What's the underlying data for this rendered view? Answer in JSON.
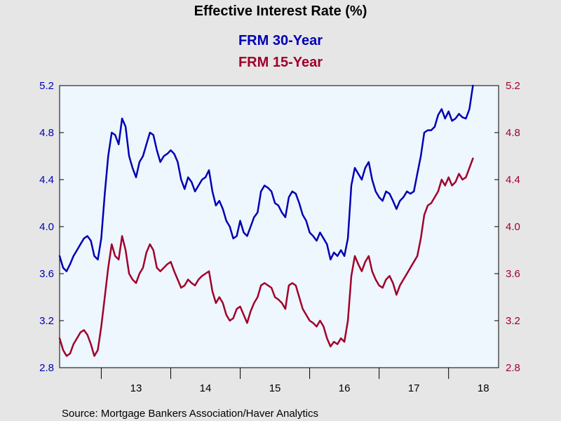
{
  "chart_data": {
    "type": "line",
    "title": "Effective Interest Rate (%)",
    "source": "Source:  Mortgage Bankers Association/Haver Analytics",
    "ylim": [
      2.8,
      5.2
    ],
    "yticks": [
      "2.8",
      "3.2",
      "3.6",
      "4.0",
      "4.4",
      "4.8",
      "5.2"
    ],
    "xlim": [
      2012.4,
      2018.72
    ],
    "xticks": [
      {
        "label": "13",
        "value": 2013.5
      },
      {
        "label": "14",
        "value": 2014.5
      },
      {
        "label": "15",
        "value": 2015.5
      },
      {
        "label": "16",
        "value": 2016.5
      },
      {
        "label": "17",
        "value": 2017.5
      },
      {
        "label": "18",
        "value": 2018.5
      }
    ],
    "year_boundaries": [
      2013,
      2014,
      2015,
      2016,
      2017,
      2018
    ],
    "grid": false,
    "legend_position": "top-center",
    "series": [
      {
        "name": "FRM 30-Year",
        "color": "#0000b4",
        "axis": "left",
        "points": [
          [
            2012.4,
            3.75
          ],
          [
            2012.45,
            3.65
          ],
          [
            2012.5,
            3.62
          ],
          [
            2012.55,
            3.68
          ],
          [
            2012.6,
            3.75
          ],
          [
            2012.65,
            3.8
          ],
          [
            2012.7,
            3.85
          ],
          [
            2012.75,
            3.9
          ],
          [
            2012.8,
            3.92
          ],
          [
            2012.85,
            3.88
          ],
          [
            2012.9,
            3.75
          ],
          [
            2012.95,
            3.72
          ],
          [
            2013.0,
            3.9
          ],
          [
            2013.05,
            4.28
          ],
          [
            2013.1,
            4.6
          ],
          [
            2013.15,
            4.8
          ],
          [
            2013.2,
            4.78
          ],
          [
            2013.25,
            4.7
          ],
          [
            2013.3,
            4.92
          ],
          [
            2013.35,
            4.85
          ],
          [
            2013.4,
            4.6
          ],
          [
            2013.45,
            4.5
          ],
          [
            2013.5,
            4.42
          ],
          [
            2013.55,
            4.55
          ],
          [
            2013.6,
            4.6
          ],
          [
            2013.65,
            4.7
          ],
          [
            2013.7,
            4.8
          ],
          [
            2013.75,
            4.78
          ],
          [
            2013.8,
            4.65
          ],
          [
            2013.85,
            4.55
          ],
          [
            2013.9,
            4.6
          ],
          [
            2013.95,
            4.62
          ],
          [
            2014.0,
            4.65
          ],
          [
            2014.05,
            4.62
          ],
          [
            2014.1,
            4.55
          ],
          [
            2014.15,
            4.4
          ],
          [
            2014.2,
            4.32
          ],
          [
            2014.25,
            4.42
          ],
          [
            2014.3,
            4.38
          ],
          [
            2014.35,
            4.3
          ],
          [
            2014.4,
            4.35
          ],
          [
            2014.45,
            4.4
          ],
          [
            2014.5,
            4.42
          ],
          [
            2014.55,
            4.48
          ],
          [
            2014.6,
            4.3
          ],
          [
            2014.65,
            4.18
          ],
          [
            2014.7,
            4.22
          ],
          [
            2014.75,
            4.15
          ],
          [
            2014.8,
            4.05
          ],
          [
            2014.85,
            4.0
          ],
          [
            2014.9,
            3.9
          ],
          [
            2014.95,
            3.92
          ],
          [
            2015.0,
            4.05
          ],
          [
            2015.05,
            3.95
          ],
          [
            2015.1,
            3.92
          ],
          [
            2015.15,
            4.0
          ],
          [
            2015.2,
            4.08
          ],
          [
            2015.25,
            4.12
          ],
          [
            2015.3,
            4.3
          ],
          [
            2015.35,
            4.35
          ],
          [
            2015.4,
            4.33
          ],
          [
            2015.45,
            4.3
          ],
          [
            2015.5,
            4.2
          ],
          [
            2015.55,
            4.18
          ],
          [
            2015.6,
            4.12
          ],
          [
            2015.65,
            4.08
          ],
          [
            2015.7,
            4.25
          ],
          [
            2015.75,
            4.3
          ],
          [
            2015.8,
            4.28
          ],
          [
            2015.85,
            4.2
          ],
          [
            2015.9,
            4.1
          ],
          [
            2015.95,
            4.05
          ],
          [
            2016.0,
            3.95
          ],
          [
            2016.05,
            3.92
          ],
          [
            2016.1,
            3.88
          ],
          [
            2016.15,
            3.95
          ],
          [
            2016.2,
            3.9
          ],
          [
            2016.25,
            3.85
          ],
          [
            2016.3,
            3.72
          ],
          [
            2016.35,
            3.78
          ],
          [
            2016.4,
            3.75
          ],
          [
            2016.45,
            3.8
          ],
          [
            2016.5,
            3.75
          ],
          [
            2016.55,
            3.9
          ],
          [
            2016.6,
            4.35
          ],
          [
            2016.65,
            4.5
          ],
          [
            2016.7,
            4.45
          ],
          [
            2016.75,
            4.4
          ],
          [
            2016.8,
            4.5
          ],
          [
            2016.85,
            4.55
          ],
          [
            2016.9,
            4.4
          ],
          [
            2016.95,
            4.3
          ],
          [
            2017.0,
            4.25
          ],
          [
            2017.05,
            4.22
          ],
          [
            2017.1,
            4.3
          ],
          [
            2017.15,
            4.28
          ],
          [
            2017.2,
            4.22
          ],
          [
            2017.25,
            4.15
          ],
          [
            2017.3,
            4.22
          ],
          [
            2017.35,
            4.25
          ],
          [
            2017.4,
            4.3
          ],
          [
            2017.45,
            4.28
          ],
          [
            2017.5,
            4.3
          ],
          [
            2017.55,
            4.45
          ],
          [
            2017.6,
            4.6
          ],
          [
            2017.65,
            4.8
          ],
          [
            2017.7,
            4.82
          ],
          [
            2017.75,
            4.82
          ],
          [
            2017.8,
            4.85
          ],
          [
            2017.85,
            4.95
          ],
          [
            2017.9,
            5.0
          ],
          [
            2017.95,
            4.92
          ],
          [
            2018.0,
            4.98
          ],
          [
            2018.05,
            4.9
          ],
          [
            2018.1,
            4.92
          ],
          [
            2018.15,
            4.96
          ],
          [
            2018.2,
            4.93
          ],
          [
            2018.25,
            4.92
          ],
          [
            2018.3,
            5.0
          ],
          [
            2018.35,
            5.2
          ]
        ]
      },
      {
        "name": "FRM 15-Year",
        "color": "#a0002a",
        "axis": "right",
        "points": [
          [
            2012.4,
            3.05
          ],
          [
            2012.45,
            2.95
          ],
          [
            2012.5,
            2.9
          ],
          [
            2012.55,
            2.92
          ],
          [
            2012.6,
            3.0
          ],
          [
            2012.65,
            3.05
          ],
          [
            2012.7,
            3.1
          ],
          [
            2012.75,
            3.12
          ],
          [
            2012.8,
            3.08
          ],
          [
            2012.85,
            3.0
          ],
          [
            2012.9,
            2.9
          ],
          [
            2012.95,
            2.95
          ],
          [
            2013.0,
            3.15
          ],
          [
            2013.05,
            3.4
          ],
          [
            2013.1,
            3.65
          ],
          [
            2013.15,
            3.85
          ],
          [
            2013.2,
            3.75
          ],
          [
            2013.25,
            3.72
          ],
          [
            2013.3,
            3.92
          ],
          [
            2013.35,
            3.8
          ],
          [
            2013.4,
            3.6
          ],
          [
            2013.45,
            3.55
          ],
          [
            2013.5,
            3.52
          ],
          [
            2013.55,
            3.6
          ],
          [
            2013.6,
            3.65
          ],
          [
            2013.65,
            3.78
          ],
          [
            2013.7,
            3.85
          ],
          [
            2013.75,
            3.8
          ],
          [
            2013.8,
            3.65
          ],
          [
            2013.85,
            3.62
          ],
          [
            2013.9,
            3.65
          ],
          [
            2013.95,
            3.68
          ],
          [
            2014.0,
            3.7
          ],
          [
            2014.05,
            3.62
          ],
          [
            2014.1,
            3.55
          ],
          [
            2014.15,
            3.48
          ],
          [
            2014.2,
            3.5
          ],
          [
            2014.25,
            3.55
          ],
          [
            2014.3,
            3.52
          ],
          [
            2014.35,
            3.5
          ],
          [
            2014.4,
            3.55
          ],
          [
            2014.45,
            3.58
          ],
          [
            2014.5,
            3.6
          ],
          [
            2014.55,
            3.62
          ],
          [
            2014.6,
            3.45
          ],
          [
            2014.65,
            3.35
          ],
          [
            2014.7,
            3.4
          ],
          [
            2014.75,
            3.35
          ],
          [
            2014.8,
            3.25
          ],
          [
            2014.85,
            3.2
          ],
          [
            2014.9,
            3.22
          ],
          [
            2014.95,
            3.3
          ],
          [
            2015.0,
            3.32
          ],
          [
            2015.05,
            3.25
          ],
          [
            2015.1,
            3.18
          ],
          [
            2015.15,
            3.28
          ],
          [
            2015.2,
            3.35
          ],
          [
            2015.25,
            3.4
          ],
          [
            2015.3,
            3.5
          ],
          [
            2015.35,
            3.52
          ],
          [
            2015.4,
            3.5
          ],
          [
            2015.45,
            3.48
          ],
          [
            2015.5,
            3.4
          ],
          [
            2015.55,
            3.38
          ],
          [
            2015.6,
            3.35
          ],
          [
            2015.65,
            3.3
          ],
          [
            2015.7,
            3.5
          ],
          [
            2015.75,
            3.52
          ],
          [
            2015.8,
            3.5
          ],
          [
            2015.85,
            3.4
          ],
          [
            2015.9,
            3.3
          ],
          [
            2015.95,
            3.25
          ],
          [
            2016.0,
            3.2
          ],
          [
            2016.05,
            3.18
          ],
          [
            2016.1,
            3.15
          ],
          [
            2016.15,
            3.2
          ],
          [
            2016.2,
            3.15
          ],
          [
            2016.25,
            3.05
          ],
          [
            2016.3,
            2.98
          ],
          [
            2016.35,
            3.02
          ],
          [
            2016.4,
            3.0
          ],
          [
            2016.45,
            3.05
          ],
          [
            2016.5,
            3.02
          ],
          [
            2016.55,
            3.2
          ],
          [
            2016.6,
            3.58
          ],
          [
            2016.65,
            3.75
          ],
          [
            2016.7,
            3.68
          ],
          [
            2016.75,
            3.62
          ],
          [
            2016.8,
            3.7
          ],
          [
            2016.85,
            3.75
          ],
          [
            2016.9,
            3.62
          ],
          [
            2016.95,
            3.55
          ],
          [
            2017.0,
            3.5
          ],
          [
            2017.05,
            3.48
          ],
          [
            2017.1,
            3.55
          ],
          [
            2017.15,
            3.58
          ],
          [
            2017.2,
            3.52
          ],
          [
            2017.25,
            3.42
          ],
          [
            2017.3,
            3.5
          ],
          [
            2017.35,
            3.55
          ],
          [
            2017.4,
            3.6
          ],
          [
            2017.45,
            3.65
          ],
          [
            2017.5,
            3.7
          ],
          [
            2017.55,
            3.75
          ],
          [
            2017.6,
            3.9
          ],
          [
            2017.65,
            4.1
          ],
          [
            2017.7,
            4.18
          ],
          [
            2017.75,
            4.2
          ],
          [
            2017.8,
            4.25
          ],
          [
            2017.85,
            4.3
          ],
          [
            2017.9,
            4.4
          ],
          [
            2017.95,
            4.35
          ],
          [
            2018.0,
            4.42
          ],
          [
            2018.05,
            4.35
          ],
          [
            2018.1,
            4.38
          ],
          [
            2018.15,
            4.45
          ],
          [
            2018.2,
            4.4
          ],
          [
            2018.25,
            4.42
          ],
          [
            2018.3,
            4.5
          ],
          [
            2018.35,
            4.58
          ]
        ]
      }
    ]
  }
}
